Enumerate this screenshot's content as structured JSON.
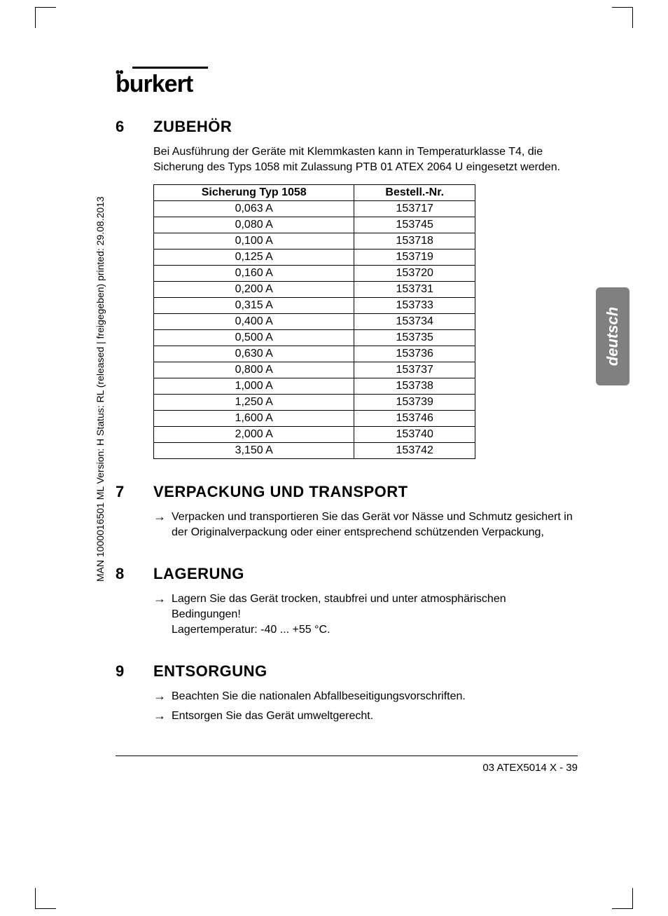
{
  "logo": "burkert",
  "side_tab": "deutsch",
  "vertical_note": "MAN 1000016501 ML  Version: H  Status: RL (released | freigegeben)  printed: 29.08.2013",
  "footer": "03 ATEX5014 X  -  39",
  "sections": {
    "s6": {
      "num": "6",
      "title": "ZUBEHÖR",
      "intro": "Bei Ausführung der Geräte mit Klemmkasten kann in Temperaturklasse T4, die Sicherung des Typs 1058 mit Zulassung PTB 01 ATEX 2064 U eingesetzt werden."
    },
    "s7": {
      "num": "7",
      "title": "VERPACKUNG UND TRANSPORT",
      "bullet1": "Verpacken und transportieren Sie das Gerät vor Nässe und Schmutz gesichert in der Originalverpackung oder einer entsprechend schützenden Verpackung,"
    },
    "s8": {
      "num": "8",
      "title": "LAGERUNG",
      "bullet1": "Lagern Sie das Gerät trocken, staubfrei und unter atmosphärischen Bedingungen!",
      "line2": "Lagertemperatur: -40 ... +55 °C."
    },
    "s9": {
      "num": "9",
      "title": "ENTSORGUNG",
      "bullet1": "Beachten Sie die nationalen Abfallbeseitigungsvorschriften.",
      "bullet2": "Entsorgen Sie das Gerät umweltgerecht."
    }
  },
  "table": {
    "col1_header": "Sicherung Typ 1058",
    "col2_header": "Bestell.-Nr.",
    "rows": [
      [
        "0,063 A",
        "153717"
      ],
      [
        "0,080 A",
        "153745"
      ],
      [
        "0,100 A",
        "153718"
      ],
      [
        "0,125 A",
        "153719"
      ],
      [
        "0,160 A",
        "153720"
      ],
      [
        "0,200 A",
        "153731"
      ],
      [
        "0,315 A",
        "153733"
      ],
      [
        "0,400 A",
        "153734"
      ],
      [
        "0,500 A",
        "153735"
      ],
      [
        "0,630 A",
        "153736"
      ],
      [
        "0,800 A",
        "153737"
      ],
      [
        "1,000 A",
        "153738"
      ],
      [
        "1,250 A",
        "153739"
      ],
      [
        "1,600 A",
        "153746"
      ],
      [
        "2,000 A",
        "153740"
      ],
      [
        "3,150 A",
        "153742"
      ]
    ]
  }
}
